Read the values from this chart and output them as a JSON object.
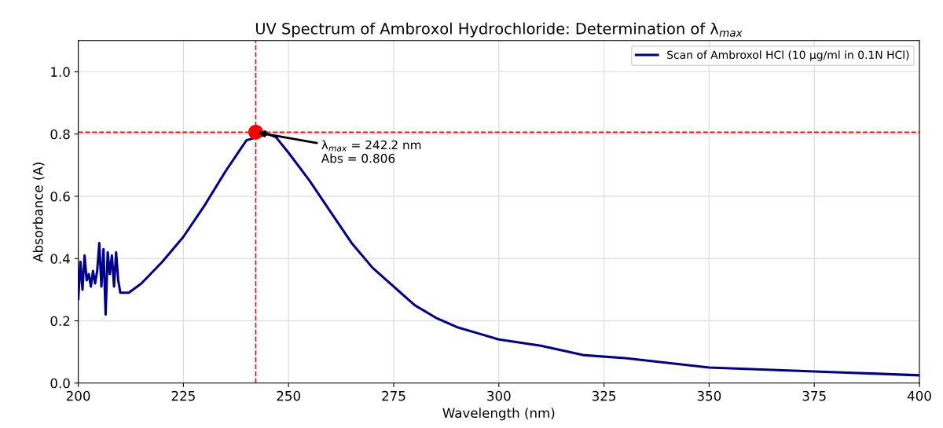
{
  "chart_data": {
    "type": "line",
    "title": "UV Spectrum of Ambroxol Hydrochloride: Determination of λ$_{max}$",
    "xlabel": "Wavelength (nm)",
    "ylabel": "Absorbance (A)",
    "series": [
      {
        "name": "Scan of Ambroxol HCl (10 µg/ml in 0.1N HCl)",
        "color": "#00008b",
        "x": [
          200,
          200.5,
          201,
          201.5,
          202,
          202.5,
          203,
          203.5,
          204,
          204.5,
          205,
          205.5,
          206,
          206.5,
          207,
          207.5,
          208,
          208.5,
          209,
          209.5,
          210,
          212,
          215,
          220,
          225,
          230,
          235,
          238,
          240,
          245,
          247,
          250,
          255,
          260,
          265,
          270,
          275,
          280,
          285,
          290,
          295,
          300,
          310,
          320,
          330,
          340,
          350,
          360,
          370,
          380,
          390,
          400
        ],
        "values": [
          0.27,
          0.39,
          0.3,
          0.41,
          0.33,
          0.35,
          0.31,
          0.36,
          0.32,
          0.36,
          0.45,
          0.31,
          0.43,
          0.22,
          0.42,
          0.35,
          0.41,
          0.31,
          0.42,
          0.33,
          0.29,
          0.29,
          0.32,
          0.39,
          0.47,
          0.57,
          0.68,
          0.74,
          0.78,
          0.8,
          0.79,
          0.74,
          0.65,
          0.55,
          0.45,
          0.37,
          0.31,
          0.25,
          0.21,
          0.18,
          0.16,
          0.14,
          0.12,
          0.09,
          0.08,
          0.065,
          0.05,
          0.045,
          0.04,
          0.035,
          0.03,
          0.025
        ]
      },
      {
        "type": "scatter",
        "color": "#ff0000",
        "x": [
          242.2
        ],
        "values": [
          0.806
        ]
      }
    ],
    "xlim": [
      200,
      400
    ],
    "xticks": [
      200,
      225,
      250,
      275,
      300,
      325,
      350,
      375,
      400
    ],
    "ylim": [
      0,
      1.1
    ],
    "yticks": [
      {
        "value": 0,
        "label": "0.0"
      },
      {
        "value": 0.2,
        "label": "0.2"
      },
      {
        "value": 0.4,
        "label": "0.4"
      },
      {
        "value": 0.6,
        "label": "0.6"
      },
      {
        "value": 0.8,
        "label": "0.8"
      },
      {
        "value": 1.0,
        "label": "1.0"
      }
    ],
    "ref_lines": [
      {
        "axis": "x",
        "value": 242.2,
        "color": "#ff0000",
        "line_style": "dashed"
      },
      {
        "axis": "y",
        "value": 0.806,
        "color": "#ff0000",
        "line_style": "dashed"
      }
    ],
    "annotations": [
      {
        "text": "λ$_{max}$ = 242.2 nm\nAbs = 0.806",
        "x": 242.2,
        "y": 0.806
      }
    ],
    "grid": true,
    "legend": "top right"
  }
}
